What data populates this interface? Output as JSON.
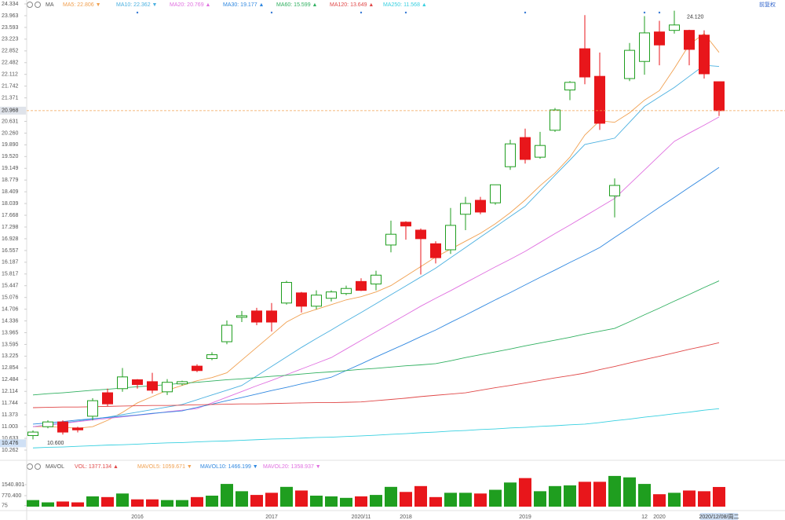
{
  "chart_data": {
    "type": "candlestick",
    "indicator": "MA",
    "adjust": "前复权",
    "categories": [
      null,
      null,
      null,
      null,
      null,
      null,
      null,
      "2016",
      null,
      null,
      null,
      null,
      null,
      null,
      null,
      null,
      "2017",
      null,
      null,
      null,
      null,
      null,
      "2020/11",
      null,
      null,
      "2018",
      null,
      null,
      null,
      null,
      null,
      null,
      null,
      "2019",
      null,
      null,
      null,
      null,
      null,
      null,
      null,
      "12",
      "2020",
      null,
      null,
      null,
      "2020/12/08/周二"
    ],
    "open": [
      10.72,
      11.0,
      11.15,
      10.96,
      11.33,
      12.07,
      12.2,
      12.48,
      12.42,
      12.1,
      12.35,
      12.91,
      13.15,
      13.68,
      14.45,
      14.65,
      14.65,
      14.9,
      15.22,
      14.8,
      15.05,
      15.2,
      15.58,
      15.5,
      16.73,
      17.45,
      17.2,
      16.77,
      16.58,
      17.7,
      18.14,
      18.06,
      19.2,
      20.12,
      19.5,
      20.35,
      21.62,
      22.92,
      22.05,
      18.28,
      21.98,
      22.52,
      23.45,
      23.5,
      23.5,
      23.35,
      21.88
    ],
    "high": [
      10.88,
      11.2,
      11.2,
      11.0,
      11.9,
      12.2,
      12.85,
      12.5,
      12.7,
      12.5,
      12.45,
      12.97,
      13.35,
      14.35,
      14.65,
      14.75,
      14.9,
      15.6,
      15.25,
      15.3,
      15.3,
      15.45,
      15.68,
      15.92,
      17.5,
      17.48,
      17.25,
      16.85,
      17.9,
      18.25,
      18.25,
      18.63,
      20.05,
      20.4,
      20.3,
      21.05,
      21.9,
      23.98,
      22.8,
      18.83,
      23.1,
      23.95,
      23.8,
      24.12,
      23.52,
      23.5,
      21.88
    ],
    "low": [
      10.6,
      10.95,
      10.75,
      10.82,
      11.2,
      11.65,
      12.1,
      12.2,
      12.05,
      12.0,
      12.3,
      12.72,
      13.1,
      13.6,
      14.3,
      14.2,
      14.0,
      14.85,
      14.6,
      14.7,
      14.95,
      15.15,
      15.28,
      15.3,
      16.5,
      16.9,
      15.8,
      16.15,
      16.45,
      17.2,
      17.7,
      18.0,
      19.1,
      19.3,
      19.45,
      20.3,
      21.3,
      21.8,
      20.36,
      17.6,
      21.9,
      22.1,
      22.4,
      23.4,
      22.4,
      21.98,
      20.8
    ],
    "close": [
      10.83,
      11.15,
      10.83,
      10.9,
      11.82,
      11.72,
      12.57,
      12.33,
      12.15,
      12.4,
      12.42,
      12.77,
      13.27,
      14.2,
      14.5,
      14.3,
      14.3,
      15.55,
      14.8,
      15.15,
      15.25,
      15.36,
      15.3,
      15.78,
      17.07,
      17.33,
      16.93,
      16.33,
      17.35,
      18.04,
      17.77,
      18.63,
      19.92,
      19.43,
      19.87,
      20.99,
      21.86,
      22.03,
      20.57,
      18.61,
      22.87,
      23.42,
      23.04,
      23.67,
      22.9,
      22.13,
      20.968
    ],
    "up_color": "#1f9e1f",
    "down_color": "#e8161b",
    "ylim": [
      10.262,
      24.334
    ],
    "yticks": [
      24.334,
      23.963,
      23.593,
      23.223,
      22.852,
      22.482,
      22.112,
      21.742,
      21.371,
      20.631,
      {
        "value": 20.26,
        "label": "20.260"
      },
      {
        "value": 19.89,
        "label": "19.890"
      },
      {
        "value": 19.52,
        "label": "19.520"
      },
      19.149,
      18.779,
      18.409,
      18.039,
      17.668,
      17.298,
      16.928,
      16.557,
      16.187,
      15.817,
      15.447,
      15.076,
      14.706,
      14.336,
      13.965,
      13.595,
      13.225,
      12.854,
      12.484,
      12.114,
      11.744,
      11.373,
      11.003,
      10.633,
      10.262
    ],
    "last_price": 20.968,
    "crosshair_price": 10.476,
    "high_label": {
      "value": 24.12,
      "label": "24.120"
    },
    "low_label": {
      "value": 10.6,
      "label": "10.600"
    },
    "series": [
      {
        "name": "MA5: 22.806 ▼",
        "color": "#f0a050",
        "values": [
          11.0,
          11.0,
          10.98,
          10.95,
          11.0,
          11.2,
          11.45,
          11.75,
          11.95,
          12.15,
          12.3,
          12.45,
          12.55,
          12.7,
          13.1,
          13.5,
          13.9,
          14.3,
          14.55,
          14.7,
          14.85,
          15.0,
          15.1,
          15.25,
          15.45,
          15.75,
          16.05,
          16.35,
          16.6,
          16.85,
          17.1,
          17.4,
          17.75,
          18.15,
          18.6,
          19.0,
          19.5,
          20.2,
          20.65,
          20.6,
          20.9,
          21.3,
          21.6,
          22.3,
          23.05,
          23.4,
          22.806
        ]
      },
      {
        "name": "MA10: 22.362 ▼",
        "color": "#4ab0e0",
        "values": [
          11.0,
          11.06,
          11.12,
          11.18,
          11.24,
          11.3,
          11.38,
          11.46,
          11.54,
          11.62,
          11.7,
          11.85,
          12.0,
          12.15,
          12.3,
          12.6,
          12.9,
          13.2,
          13.5,
          13.78,
          14.05,
          14.33,
          14.6,
          14.88,
          15.16,
          15.44,
          15.72,
          16.0,
          16.33,
          16.65,
          16.98,
          17.3,
          17.63,
          17.95,
          18.44,
          18.93,
          19.41,
          19.9,
          20.0,
          20.1,
          20.6,
          21.1,
          21.4,
          21.7,
          22.05,
          22.4,
          22.362
        ]
      },
      {
        "name": "MA20: 20.769 ▲",
        "color": "#e070e0",
        "values": [
          11.0,
          11.05,
          11.1,
          11.16,
          11.21,
          11.26,
          11.31,
          11.36,
          11.41,
          11.47,
          11.52,
          11.57,
          11.75,
          11.93,
          12.11,
          12.29,
          12.46,
          12.64,
          12.82,
          13.0,
          13.18,
          13.45,
          13.72,
          13.99,
          14.26,
          14.53,
          14.8,
          15.05,
          15.29,
          15.54,
          15.79,
          16.04,
          16.28,
          16.53,
          16.81,
          17.09,
          17.36,
          17.64,
          17.92,
          18.2,
          18.65,
          19.1,
          19.55,
          20.0,
          20.26,
          20.51,
          20.769
        ]
      },
      {
        "name": "MA30: 19.177 ▲",
        "color": "#3088e0",
        "values": [
          11.08,
          11.12,
          11.16,
          11.21,
          11.25,
          11.29,
          11.33,
          11.37,
          11.42,
          11.46,
          11.5,
          11.61,
          11.71,
          11.82,
          11.92,
          12.03,
          12.14,
          12.24,
          12.35,
          12.45,
          12.56,
          12.77,
          12.98,
          13.2,
          13.41,
          13.62,
          13.84,
          14.05,
          14.29,
          14.52,
          14.76,
          15.0,
          15.23,
          15.47,
          15.71,
          15.94,
          16.18,
          16.41,
          16.65,
          16.97,
          17.28,
          17.6,
          17.92,
          18.23,
          18.55,
          18.86,
          19.177
        ]
      },
      {
        "name": "MA60: 15.599 ▲",
        "color": "#30b060",
        "values": [
          12.0,
          12.04,
          12.07,
          12.11,
          12.15,
          12.18,
          12.22,
          12.26,
          12.29,
          12.33,
          12.37,
          12.4,
          12.44,
          12.48,
          12.51,
          12.55,
          12.59,
          12.62,
          12.66,
          12.7,
          12.73,
          12.77,
          12.81,
          12.84,
          12.88,
          12.92,
          12.95,
          12.99,
          13.08,
          13.18,
          13.27,
          13.36,
          13.45,
          13.55,
          13.64,
          13.73,
          13.82,
          13.92,
          14.01,
          14.1,
          14.31,
          14.53,
          14.74,
          14.96,
          15.17,
          15.39,
          15.599
        ]
      },
      {
        "name": "MA120: 13.649 ▲",
        "color": "#e04848",
        "values": [
          11.6,
          11.61,
          11.62,
          11.62,
          11.63,
          11.64,
          11.65,
          11.66,
          11.67,
          11.67,
          11.68,
          11.69,
          11.7,
          11.71,
          11.72,
          11.72,
          11.73,
          11.74,
          11.75,
          11.76,
          11.76,
          11.77,
          11.78,
          11.82,
          11.86,
          11.9,
          11.95,
          11.99,
          12.03,
          12.07,
          12.15,
          12.23,
          12.3,
          12.38,
          12.46,
          12.54,
          12.61,
          12.69,
          12.8,
          12.9,
          13.01,
          13.12,
          13.22,
          13.33,
          13.44,
          13.54,
          13.649
        ]
      },
      {
        "name": "MA250: 11.568 ▲",
        "color": "#38d0e0",
        "values": [
          10.33,
          10.35,
          10.36,
          10.38,
          10.4,
          10.42,
          10.43,
          10.45,
          10.47,
          10.49,
          10.5,
          10.52,
          10.54,
          10.55,
          10.57,
          10.59,
          10.61,
          10.62,
          10.64,
          10.66,
          10.67,
          10.69,
          10.71,
          10.73,
          10.76,
          10.78,
          10.81,
          10.83,
          10.86,
          10.88,
          10.91,
          10.93,
          10.96,
          10.98,
          11.01,
          11.03,
          11.06,
          11.08,
          11.13,
          11.19,
          11.24,
          11.3,
          11.35,
          11.41,
          11.46,
          11.52,
          11.568
        ]
      }
    ],
    "volume": {
      "title": "MAVOL",
      "values": [
        460,
        300,
        360,
        300,
        720,
        670,
        920,
        510,
        510,
        460,
        460,
        670,
        770,
        1590,
        1080,
        820,
        970,
        1385,
        1130,
        770,
        720,
        615,
        720,
        820,
        1385,
        1030,
        1440,
        670,
        970,
        970,
        920,
        1180,
        1690,
        2000,
        1080,
        1440,
        1490,
        1740,
        1740,
        2150,
        2050,
        1590,
        870,
        970,
        1130,
        1080,
        1377.134
      ],
      "ylim": [
        0,
        2475
      ],
      "yticks": [
        1540.801,
        {
          "value": 770.4,
          "label": "770.400"
        },
        75
      ],
      "legend": [
        {
          "text": "VOL: 1377.134 ▲",
          "color": "#e04848"
        },
        {
          "text": "MAVOL5: 1059.671 ▼",
          "color": "#f0a050"
        },
        {
          "text": "MAVOL10: 1466.199 ▼",
          "color": "#3088e0"
        },
        {
          "text": "MAVOL20: 1358.937 ▼",
          "color": "#e070e0"
        }
      ]
    }
  }
}
